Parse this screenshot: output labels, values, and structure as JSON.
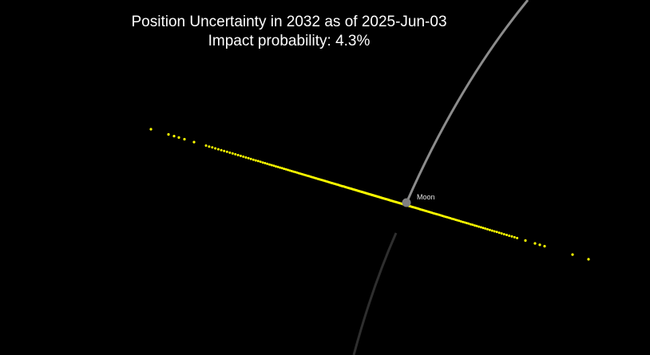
{
  "title": {
    "line1": "Position Uncertainty in 2032 as of 2025-Jun-03",
    "line2": "Impact probability: 4.3%"
  },
  "moon": {
    "label": "Moon"
  },
  "colors": {
    "background": "#000000",
    "uncertainty_points": "#ffff00",
    "orbit_front": "#8c8c8c",
    "orbit_back": "#2e2e2e",
    "moon": "#808080",
    "text": "#ffffff"
  }
}
